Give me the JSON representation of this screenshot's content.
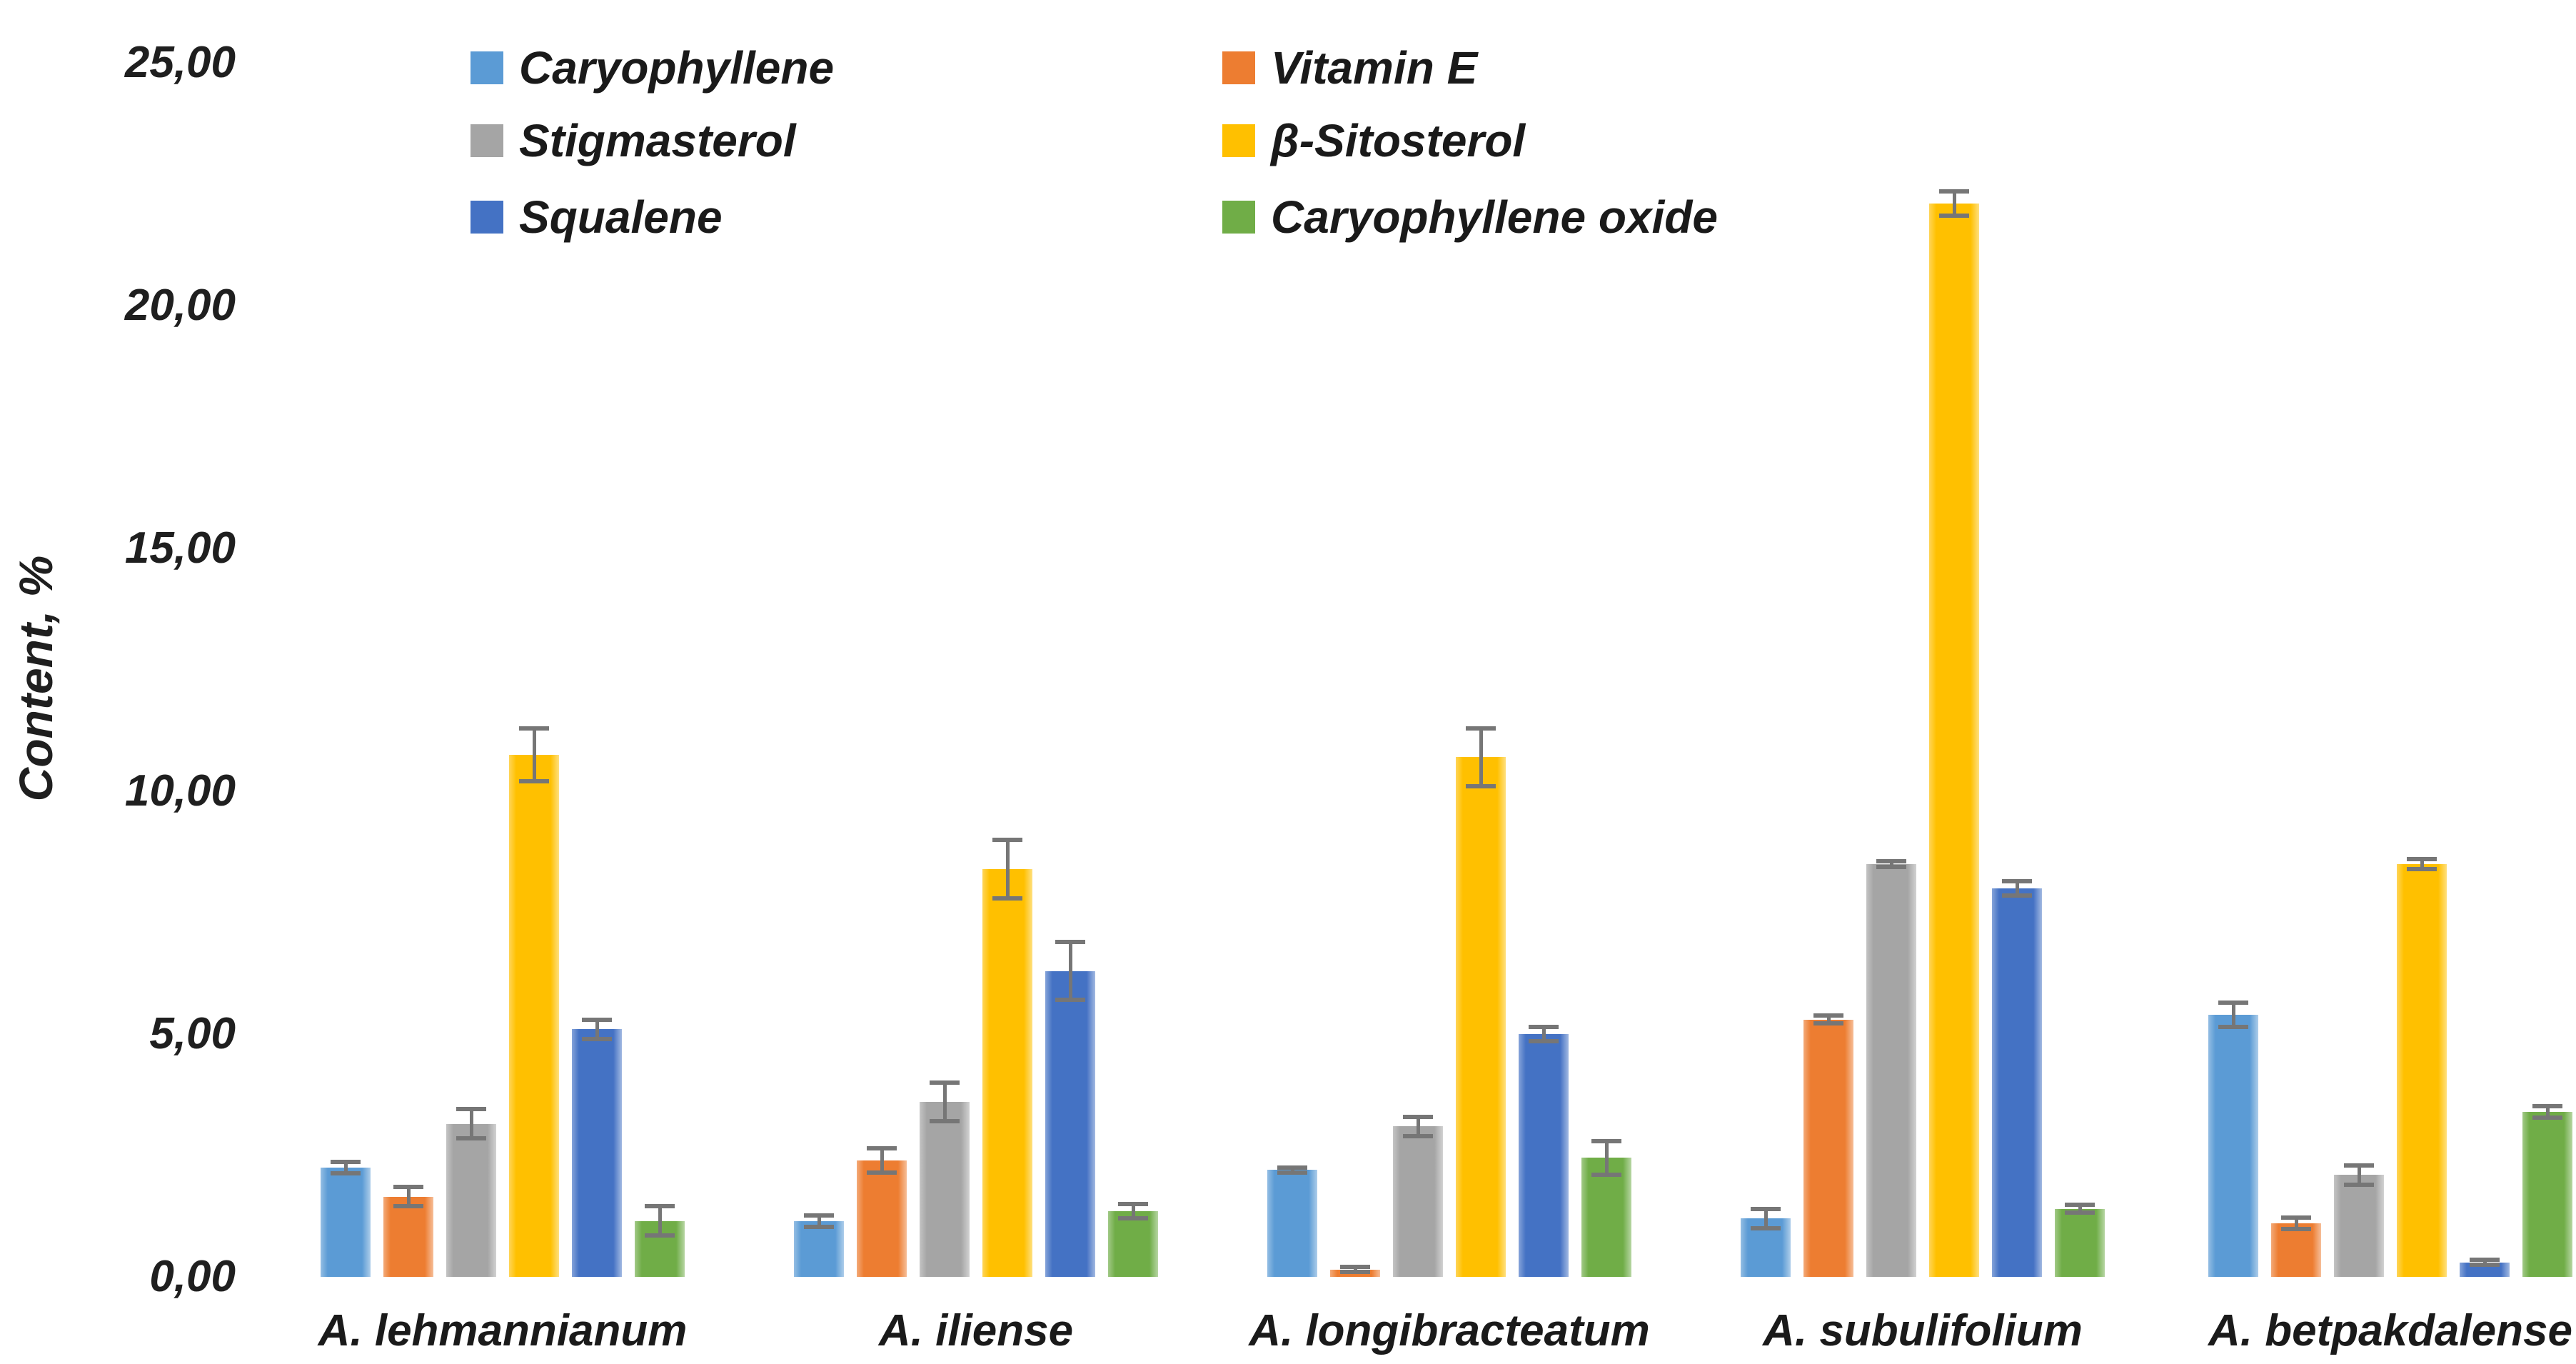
{
  "chart_data": {
    "type": "bar",
    "title": "",
    "xlabel": "",
    "ylabel": "Content, %",
    "ylim": [
      0,
      25
    ],
    "ytick_step": 5,
    "ytick_labels": [
      "0,00",
      "5,00",
      "10,00",
      "15,00",
      "20,00",
      "25,00"
    ],
    "decimal_separator": ",",
    "grid": false,
    "legend_position": "top",
    "legend_columns": 2,
    "error_bar_color": "#767676",
    "categories": [
      "A. lehmannianum",
      "A. iliense",
      "A. longibracteatum",
      "A. subulifolium",
      "A. betpakdalense"
    ],
    "series": [
      {
        "name": "Caryophyllene",
        "color": "#5B9BD5",
        "values": [
          2.25,
          1.15,
          2.2,
          1.2,
          5.4
        ],
        "errors": [
          0.12,
          0.12,
          0.05,
          0.2,
          0.25
        ]
      },
      {
        "name": "Vitamin E",
        "color": "#ED7D31",
        "values": [
          1.65,
          2.4,
          0.15,
          5.3,
          1.1
        ],
        "errors": [
          0.2,
          0.25,
          0.05,
          0.08,
          0.12
        ]
      },
      {
        "name": "Stigmasterol",
        "color": "#A5A5A5",
        "values": [
          3.15,
          3.6,
          3.1,
          8.5,
          2.1
        ],
        "errors": [
          0.3,
          0.4,
          0.2,
          0.06,
          0.2
        ]
      },
      {
        "name": "β-Sitosterol",
        "color": "#FFC000",
        "values": [
          10.75,
          8.4,
          10.7,
          22.1,
          8.5
        ],
        "errors": [
          0.55,
          0.6,
          0.6,
          0.25,
          0.1
        ]
      },
      {
        "name": "Squalene",
        "color": "#4472C4",
        "values": [
          5.1,
          6.3,
          5.0,
          8.0,
          0.3
        ],
        "errors": [
          0.2,
          0.6,
          0.15,
          0.15,
          0.05
        ]
      },
      {
        "name": "Caryophyllene oxide",
        "color": "#70AD47",
        "values": [
          1.15,
          1.35,
          2.45,
          1.4,
          3.4
        ],
        "errors": [
          0.3,
          0.15,
          0.35,
          0.08,
          0.12
        ]
      }
    ]
  }
}
